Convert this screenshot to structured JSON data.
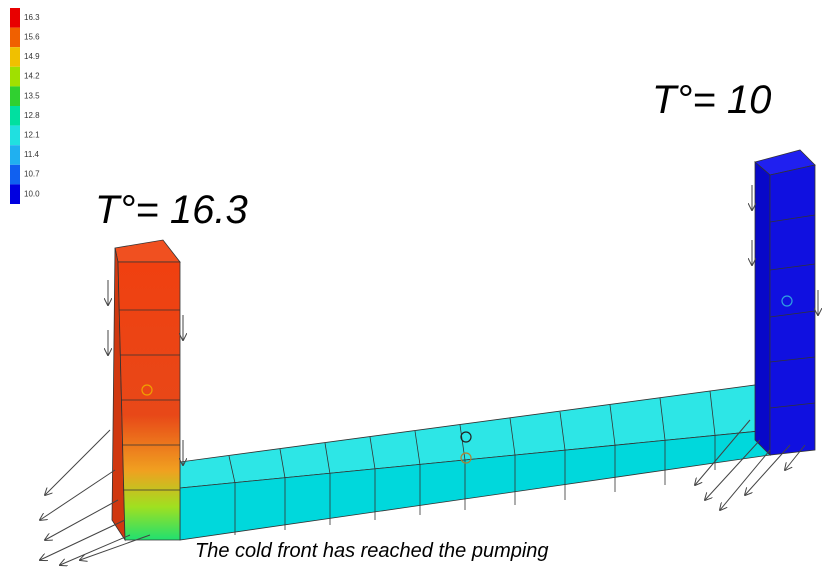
{
  "legend": {
    "labels": [
      "16.3",
      "15.6",
      "14.9",
      "14.2",
      "13.5",
      "12.8",
      "12.1",
      "11.4",
      "10.7",
      "10.0"
    ]
  },
  "annotations": {
    "left": "T°= 16.3",
    "right": "T°= 10"
  },
  "caption": "The cold front has reached the pumping"
}
